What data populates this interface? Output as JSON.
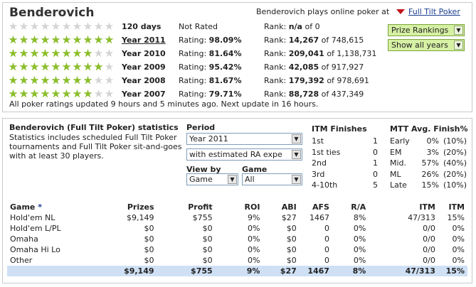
{
  "player": {
    "name": "Benderovich",
    "plays_text": "Benderovich plays online poker at",
    "site_link": "Full Tilt Poker"
  },
  "ratings": [
    {
      "period": "120 days",
      "stars": 0,
      "rating_label": "Not Rated",
      "rating_value": "",
      "rank_label": "Rank:",
      "rank_value": "n/a",
      "rank_total": "of 0",
      "link": false
    },
    {
      "period": "Year 2011",
      "stars": 10,
      "rating_label": "Rating:",
      "rating_value": "98.09%",
      "rank_label": "Rank:",
      "rank_value": "14,267",
      "rank_total": "of 748,615",
      "link": true
    },
    {
      "period": "Year 2010",
      "stars": 8,
      "rating_label": "Rating:",
      "rating_value": "81.64%",
      "rank_label": "Rank:",
      "rank_value": "209,041",
      "rank_total": "of 1,138,731",
      "link": false
    },
    {
      "period": "Year 2009",
      "stars": 9,
      "rating_label": "Rating:",
      "rating_value": "95.42%",
      "rank_label": "Rank:",
      "rank_value": "42,085",
      "rank_total": "of 917,927",
      "link": false
    },
    {
      "period": "Year 2008",
      "stars": 8,
      "rating_label": "Rating:",
      "rating_value": "81.67%",
      "rank_label": "Rank:",
      "rank_value": "179,392",
      "rank_total": "of 978,691",
      "link": false
    },
    {
      "period": "Year 2007",
      "stars": 8,
      "rating_label": "Rating:",
      "rating_value": "79.71%",
      "rank_label": "Rank:",
      "rank_value": "88,728",
      "rank_total": "of 437,349",
      "link": false
    }
  ],
  "buttons": {
    "prize_rankings": "Prize Rankings",
    "show_all_years": "Show all years"
  },
  "footnote": "All poker ratings updated 9 hours and 5 minutes ago. Next update in 16 hours.",
  "stats": {
    "heading": "Benderovich (Full Tilt Poker) statistics",
    "description": "Statistics includes scheduled Full Tilt Poker tournaments and Full Tilt Poker sit-and-goes with at least 30 players.",
    "period_label": "Period",
    "period_value": "Year 2011",
    "estimate_value": "with estimated RA expe",
    "view_by_label": "View by",
    "view_by_value": "Game",
    "game_label": "Game",
    "game_value": "All"
  },
  "itm_finishes": {
    "title": "ITM Finishes",
    "rows": [
      {
        "label": "1st",
        "value": "1"
      },
      {
        "label": "1st ties",
        "value": "0"
      },
      {
        "label": "2nd",
        "value": "1"
      },
      {
        "label": "3rd",
        "value": "0"
      },
      {
        "label": "4-10th",
        "value": "5"
      }
    ]
  },
  "mtt_finish": {
    "title": "MTT Avg. Finish%",
    "rows": [
      {
        "label": "Early",
        "value": "0%",
        "pct": "(10%)"
      },
      {
        "label": "EM",
        "value": "3%",
        "pct": "(20%)"
      },
      {
        "label": "Mid.",
        "value": "57%",
        "pct": "(40%)"
      },
      {
        "label": "ML",
        "value": "26%",
        "pct": "(20%)"
      },
      {
        "label": "Late",
        "value": "15%",
        "pct": "(10%)"
      }
    ]
  },
  "table": {
    "headers": {
      "game": "Game",
      "star": "*",
      "prizes": "Prizes",
      "profit": "Profit",
      "roi": "ROI",
      "abi": "ABI",
      "afs": "AFS",
      "ra": "R/A",
      "itm_count": "ITM",
      "itm_pct": "ITM"
    },
    "rows": [
      {
        "game": "Hold'em NL",
        "prizes": "$9,149",
        "profit": "$755",
        "roi": "9%",
        "abi": "$27",
        "afs": "1467",
        "ra": "8%",
        "itm_count": "47/313",
        "itm_pct": "15%"
      },
      {
        "game": "Hold'em L/PL",
        "prizes": "$0",
        "profit": "$0",
        "roi": "0%",
        "abi": "$0",
        "afs": "0",
        "ra": "0%",
        "itm_count": "0/0",
        "itm_pct": "0%"
      },
      {
        "game": "Omaha",
        "prizes": "$0",
        "profit": "$0",
        "roi": "0%",
        "abi": "$0",
        "afs": "0",
        "ra": "0%",
        "itm_count": "0/0",
        "itm_pct": "0%"
      },
      {
        "game": "Omaha Hi Lo",
        "prizes": "$0",
        "profit": "$0",
        "roi": "0%",
        "abi": "$0",
        "afs": "0",
        "ra": "0%",
        "itm_count": "0/0",
        "itm_pct": "0%"
      },
      {
        "game": "Other",
        "prizes": "$0",
        "profit": "$0",
        "roi": "0%",
        "abi": "$0",
        "afs": "0",
        "ra": "0%",
        "itm_count": "0/0",
        "itm_pct": "0%"
      }
    ],
    "total": {
      "prizes": "$9,149",
      "profit": "$755",
      "roi": "9%",
      "abi": "$27",
      "afs": "1467",
      "ra": "8%",
      "itm_count": "47/313",
      "itm_pct": "15%"
    }
  },
  "icons": {
    "dropdown": "chevron-down-icon",
    "star": "star-icon",
    "site_marker": "triangle-down-icon"
  },
  "colors": {
    "star_on": "#8cbf2a",
    "star_off": "#d4d4d4",
    "button_green": "#d6f0a4",
    "total_row": "#cfe0f5",
    "link": "#1a3d8f",
    "marker_red": "#c0141c"
  }
}
